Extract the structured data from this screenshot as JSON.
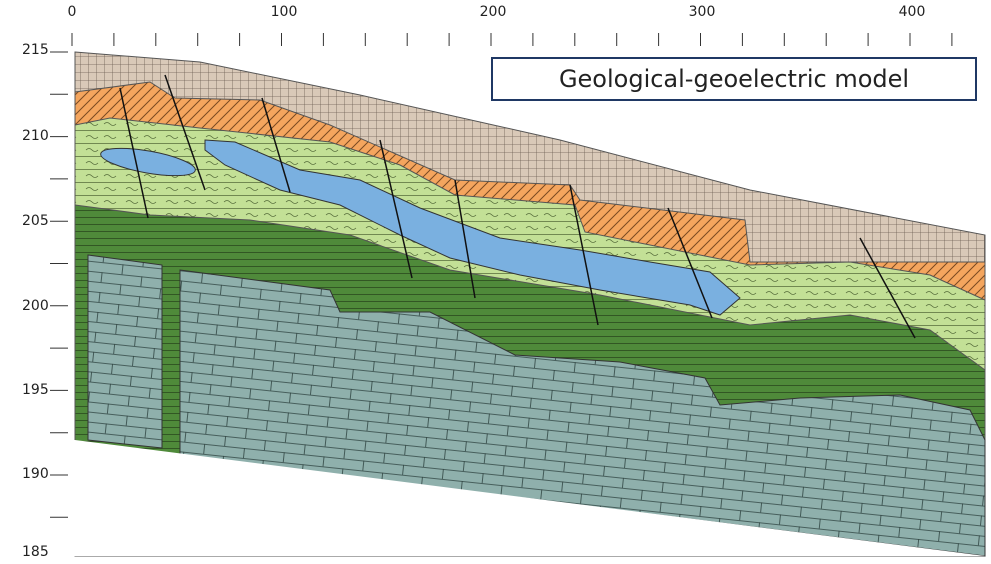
{
  "title": "Geological-geoelectric model",
  "top_axis": {
    "labels": [
      "0",
      "100",
      "200",
      "300",
      "400"
    ]
  },
  "left_axis": {
    "labels": [
      "215",
      "210",
      "205",
      "200",
      "195",
      "190",
      "185"
    ]
  }
}
